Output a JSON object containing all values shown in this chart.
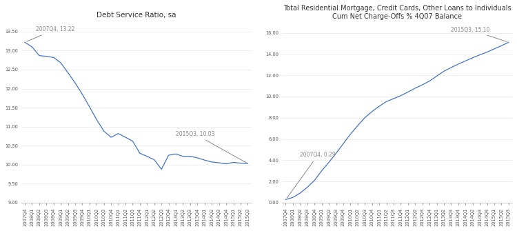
{
  "chart1_title": "Debt Service Ratio, sa",
  "chart2_title_line1": "Total Residential Mortgage, Credit Cards, Other Loans to Individuals",
  "chart2_title_line2": "Cum Net Charge-Offs % 4Q07 Balance",
  "line_color": "#4472C4",
  "quarters": [
    "2007Q4",
    "2008Q1",
    "2008Q2",
    "2008Q3",
    "2008Q4",
    "2009Q1",
    "2009Q2",
    "2009Q3",
    "2009Q4",
    "2010Q1",
    "2010Q2",
    "2010Q3",
    "2010Q4",
    "2011Q1",
    "2011Q2",
    "2011Q3",
    "2011Q4",
    "2012Q1",
    "2012Q2",
    "2012Q3",
    "2012Q4",
    "2013Q1",
    "2013Q2",
    "2013Q3",
    "2013Q4",
    "2014Q1",
    "2014Q2",
    "2014Q3",
    "2014Q4",
    "2015Q1",
    "2015Q2",
    "2015Q3"
  ],
  "dsr_values": [
    13.22,
    13.1,
    12.87,
    12.85,
    12.82,
    12.68,
    12.42,
    12.15,
    11.85,
    11.52,
    11.18,
    10.88,
    10.72,
    10.82,
    10.72,
    10.62,
    10.3,
    10.22,
    10.13,
    9.88,
    10.25,
    10.28,
    10.22,
    10.22,
    10.18,
    10.12,
    10.07,
    10.05,
    10.02,
    10.06,
    10.04,
    10.03
  ],
  "charge_off_values": [
    0.29,
    0.5,
    0.9,
    1.45,
    2.1,
    3.0,
    3.8,
    4.65,
    5.55,
    6.45,
    7.25,
    8.0,
    8.58,
    9.08,
    9.52,
    9.8,
    10.08,
    10.42,
    10.78,
    11.1,
    11.45,
    11.92,
    12.38,
    12.72,
    13.05,
    13.35,
    13.65,
    13.92,
    14.18,
    14.48,
    14.78,
    15.1
  ],
  "dsr_ylim": [
    9.0,
    13.75
  ],
  "dsr_yticks": [
    9.0,
    9.5,
    10.0,
    10.5,
    11.0,
    11.5,
    12.0,
    12.5,
    13.0,
    13.5
  ],
  "co_ylim": [
    0.0,
    17.0
  ],
  "co_yticks": [
    0.0,
    2.0,
    4.0,
    6.0,
    8.0,
    10.0,
    12.0,
    14.0,
    16.0
  ],
  "annot_color": "#888888",
  "bg_color": "#ffffff",
  "tick_label_fontsize": 4.8,
  "title_fontsize": 7.5,
  "annot_fontsize": 5.5
}
